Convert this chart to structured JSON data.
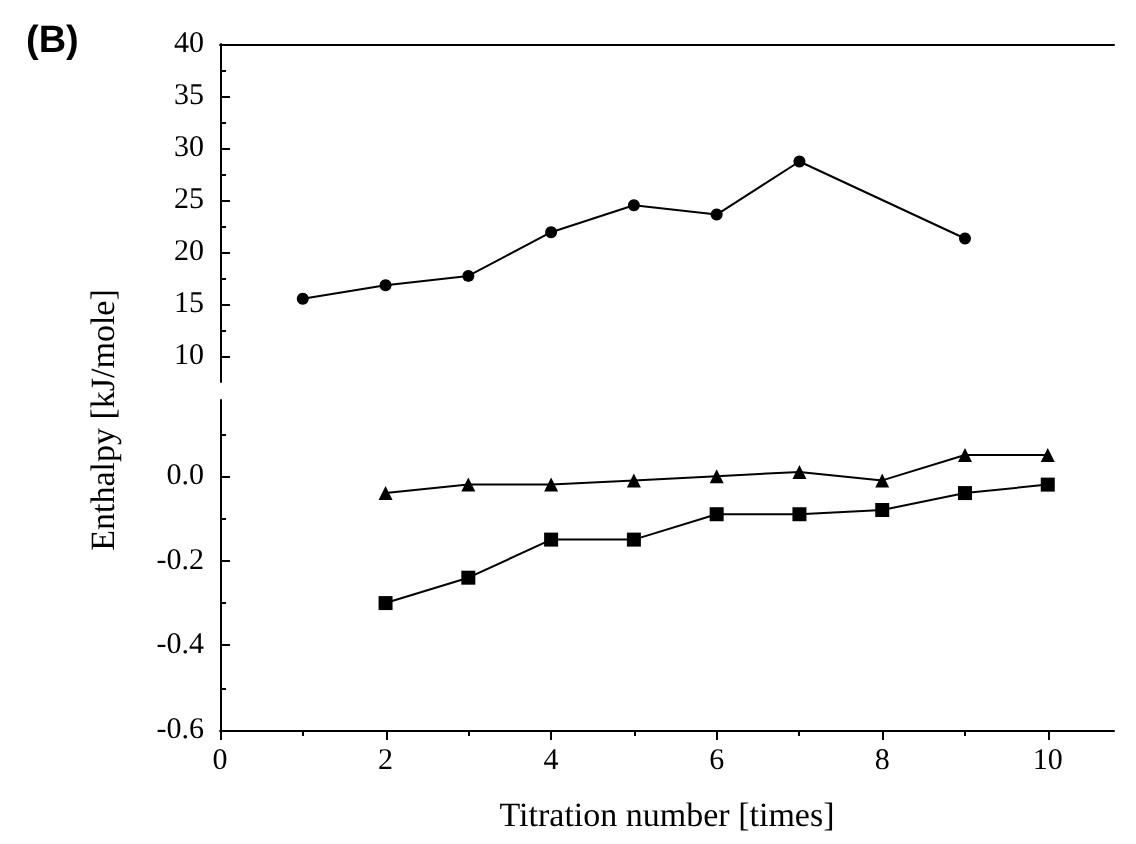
{
  "chart_data": [
    {
      "type": "line",
      "title": "(B)",
      "x": [
        1,
        2,
        3,
        4,
        5,
        6,
        7,
        9
      ],
      "xlim": [
        0,
        10.8
      ],
      "ylim": [
        7.5,
        40
      ],
      "yticks": [
        10,
        15,
        20,
        25,
        30,
        35,
        40
      ],
      "tick_labels": "y",
      "grid": false,
      "line_style": "solid",
      "series": [
        {
          "color": "#000000",
          "marker": "circle",
          "values": [
            15.5,
            16.8,
            17.7,
            21.9,
            24.5,
            23.6,
            28.7,
            21.3
          ]
        }
      ]
    },
    {
      "type": "line",
      "xlabel": "Titration number [times]",
      "ylabel": "Enthalpy [kJ/mole]",
      "x": [
        2,
        3,
        4,
        5,
        6,
        7,
        8,
        9,
        10
      ],
      "xlim": [
        0,
        10.8
      ],
      "xticks": [
        0,
        2,
        4,
        6,
        8,
        10
      ],
      "ylim": [
        -0.6,
        0.18
      ],
      "yticks": [
        -0.6,
        -0.4,
        -0.2,
        {
          "value": 0,
          "label": "0.0"
        }
      ],
      "grid": false,
      "line_style": "solid",
      "series": [
        {
          "color": "#000000",
          "marker": "triangle",
          "values": [
            -0.04,
            -0.02,
            -0.02,
            -0.01,
            0.0,
            0.01,
            -0.01,
            0.05,
            0.05
          ]
        },
        {
          "color": "#000000",
          "marker": "square",
          "values": [
            -0.3,
            -0.24,
            -0.15,
            -0.15,
            -0.09,
            -0.09,
            -0.08,
            -0.04,
            -0.02
          ]
        }
      ]
    }
  ]
}
